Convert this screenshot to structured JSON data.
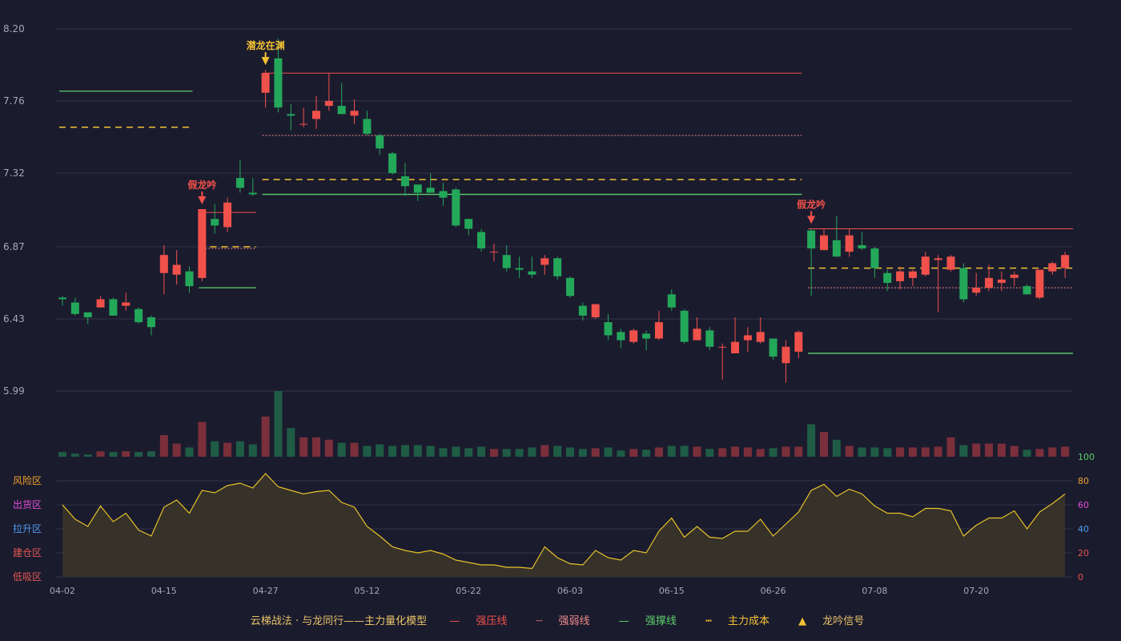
{
  "colors": {
    "background": "#1b1b2e",
    "up": "#f0514a",
    "down": "#23a85a",
    "pressure": "#f0514a",
    "weak": "#ef8a8a",
    "support": "#5bd169",
    "cost": "#f2c234",
    "signal_bear": "#f2c234",
    "signal_false": "#f0514a",
    "indicator": "#e6c229",
    "grid": "#33334a",
    "axis_text": "#a7a7b7"
  },
  "chart_data": {
    "type": "candlestick",
    "price_axis": {
      "ticks": [
        "8.20",
        "7.76",
        "7.32",
        "6.87",
        "6.43",
        "5.99"
      ],
      "ylim": [
        5.99,
        8.2
      ]
    },
    "date_ticks": [
      "04-02",
      "04-15",
      "04-27",
      "05-12",
      "05-22",
      "06-03",
      "06-15",
      "06-26",
      "07-08",
      "07-20"
    ],
    "date_tick_index": [
      0,
      8,
      16,
      24,
      32,
      40,
      48,
      56,
      64,
      72
    ],
    "candles": [
      [
        6.56,
        6.55,
        6.57,
        6.51
      ],
      [
        6.53,
        6.46,
        6.56,
        6.45
      ],
      [
        6.47,
        6.44,
        6.47,
        6.4
      ],
      [
        6.5,
        6.55,
        6.57,
        6.5
      ],
      [
        6.55,
        6.45,
        6.56,
        6.45
      ],
      [
        6.51,
        6.53,
        6.59,
        6.48
      ],
      [
        6.49,
        6.41,
        6.5,
        6.4
      ],
      [
        6.44,
        6.38,
        6.45,
        6.33
      ],
      [
        6.71,
        6.82,
        6.88,
        6.58
      ],
      [
        6.7,
        6.76,
        6.85,
        6.64
      ],
      [
        6.72,
        6.63,
        6.75,
        6.59
      ],
      [
        6.68,
        7.1,
        7.1,
        6.66
      ],
      [
        7.04,
        7.0,
        7.13,
        6.95
      ],
      [
        6.99,
        7.14,
        7.17,
        6.96
      ],
      [
        7.29,
        7.23,
        7.4,
        7.2
      ],
      [
        7.2,
        7.19,
        7.29,
        7.18
      ],
      [
        7.81,
        7.93,
        7.95,
        7.72
      ],
      [
        8.02,
        7.72,
        8.14,
        7.69
      ],
      [
        7.68,
        7.67,
        7.74,
        7.58
      ],
      [
        7.62,
        7.62,
        7.72,
        7.6
      ],
      [
        7.65,
        7.7,
        7.79,
        7.59
      ],
      [
        7.73,
        7.76,
        7.93,
        7.7
      ],
      [
        7.73,
        7.68,
        7.87,
        7.68
      ],
      [
        7.67,
        7.7,
        7.77,
        7.62
      ],
      [
        7.65,
        7.56,
        7.7,
        7.55
      ],
      [
        7.55,
        7.47,
        7.56,
        7.43
      ],
      [
        7.44,
        7.32,
        7.45,
        7.31
      ],
      [
        7.3,
        7.24,
        7.38,
        7.18
      ],
      [
        7.25,
        7.2,
        7.25,
        7.15
      ],
      [
        7.23,
        7.2,
        7.32,
        7.2
      ],
      [
        7.21,
        7.17,
        7.26,
        7.12
      ],
      [
        7.22,
        7.0,
        7.23,
        6.99
      ],
      [
        7.04,
        6.98,
        7.04,
        6.94
      ],
      [
        6.96,
        6.86,
        6.98,
        6.84
      ],
      [
        6.84,
        6.84,
        6.89,
        6.78
      ],
      [
        6.82,
        6.74,
        6.88,
        6.72
      ],
      [
        6.74,
        6.73,
        6.81,
        6.68
      ],
      [
        6.72,
        6.7,
        6.81,
        6.68
      ],
      [
        6.76,
        6.8,
        6.82,
        6.7
      ],
      [
        6.8,
        6.69,
        6.81,
        6.67
      ],
      [
        6.68,
        6.57,
        6.69,
        6.56
      ],
      [
        6.51,
        6.45,
        6.53,
        6.42
      ],
      [
        6.44,
        6.52,
        6.52,
        6.43
      ],
      [
        6.41,
        6.33,
        6.46,
        6.3
      ],
      [
        6.35,
        6.3,
        6.37,
        6.25
      ],
      [
        6.29,
        6.36,
        6.37,
        6.28
      ],
      [
        6.34,
        6.31,
        6.36,
        6.24
      ],
      [
        6.31,
        6.41,
        6.48,
        6.3
      ],
      [
        6.58,
        6.5,
        6.61,
        6.48
      ],
      [
        6.48,
        6.29,
        6.49,
        6.28
      ],
      [
        6.3,
        6.37,
        6.44,
        6.31
      ],
      [
        6.36,
        6.26,
        6.38,
        6.24
      ],
      [
        6.26,
        6.26,
        6.28,
        6.06
      ],
      [
        6.22,
        6.29,
        6.44,
        6.22
      ],
      [
        6.3,
        6.33,
        6.38,
        6.23
      ],
      [
        6.29,
        6.35,
        6.44,
        6.28
      ],
      [
        6.31,
        6.2,
        6.31,
        6.18
      ],
      [
        6.16,
        6.26,
        6.3,
        6.04
      ],
      [
        6.23,
        6.35,
        6.36,
        6.19
      ],
      [
        6.97,
        6.86,
        6.98,
        6.57
      ],
      [
        6.85,
        6.94,
        6.98,
        6.85
      ],
      [
        6.91,
        6.81,
        7.06,
        6.81
      ],
      [
        6.84,
        6.94,
        6.98,
        6.81
      ],
      [
        6.88,
        6.86,
        6.96,
        6.85
      ],
      [
        6.86,
        6.74,
        6.87,
        6.68
      ],
      [
        6.71,
        6.65,
        6.73,
        6.6
      ],
      [
        6.66,
        6.72,
        6.75,
        6.61
      ],
      [
        6.68,
        6.72,
        6.73,
        6.63
      ],
      [
        6.7,
        6.81,
        6.84,
        6.69
      ],
      [
        6.79,
        6.8,
        6.82,
        6.47
      ],
      [
        6.73,
        6.81,
        6.82,
        6.72
      ],
      [
        6.74,
        6.55,
        6.77,
        6.53
      ],
      [
        6.59,
        6.62,
        6.71,
        6.57
      ],
      [
        6.62,
        6.68,
        6.76,
        6.6
      ],
      [
        6.65,
        6.67,
        6.72,
        6.6
      ],
      [
        6.68,
        6.7,
        6.72,
        6.63
      ],
      [
        6.63,
        6.58,
        6.64,
        6.58
      ],
      [
        6.56,
        6.73,
        6.73,
        6.55
      ],
      [
        6.72,
        6.77,
        6.78,
        6.7
      ],
      [
        6.74,
        6.82,
        6.84,
        6.68
      ]
    ],
    "volume": [
      6,
      4,
      3,
      7,
      6,
      7,
      6,
      7,
      28,
      17,
      12,
      45,
      20,
      18,
      20,
      16,
      52,
      85,
      37,
      25,
      25,
      22,
      18,
      18,
      14,
      16,
      14,
      15,
      15,
      14,
      11,
      13,
      11,
      13,
      10,
      10,
      10,
      12,
      15,
      14,
      12,
      10,
      11,
      12,
      8,
      10,
      9,
      12,
      14,
      14,
      13,
      10,
      11,
      13,
      12,
      10,
      11,
      13,
      13,
      42,
      32,
      22,
      14,
      12,
      12,
      11,
      12,
      12,
      12,
      13,
      25,
      15,
      17,
      17,
      17,
      14,
      9,
      10,
      12,
      13
    ],
    "volume_max": 85,
    "indicator": [
      60,
      48,
      42,
      59,
      46,
      53,
      39,
      34,
      58,
      64,
      53,
      72,
      70,
      76,
      78,
      74,
      86,
      75,
      72,
      69,
      71,
      72,
      62,
      58,
      42,
      34,
      25,
      22,
      20,
      22,
      19,
      14,
      12,
      10,
      10,
      8,
      8,
      7,
      25,
      16,
      11,
      10,
      22,
      16,
      14,
      22,
      20,
      38,
      49,
      33,
      42,
      33,
      32,
      38,
      38,
      48,
      34,
      44,
      54,
      72,
      77,
      67,
      73,
      69,
      59,
      53,
      53,
      50,
      57,
      57,
      55,
      34,
      43,
      49,
      49,
      55,
      40,
      54,
      61,
      69
    ],
    "indicator_ticks": [
      "100",
      "80",
      "60",
      "40",
      "20",
      "0"
    ],
    "indicator_tick_colors": [
      "#5bd169",
      "#f2a22c",
      "#e04ed8",
      "#4f9df0",
      "#e4584f",
      "#f0514a"
    ],
    "zones": [
      {
        "label": "风险区",
        "value": 80,
        "color": "#f2a22c"
      },
      {
        "label": "出货区",
        "value": 60,
        "color": "#e04ed8"
      },
      {
        "label": "拉升区",
        "value": 40,
        "color": "#4f9df0"
      },
      {
        "label": "建仓区",
        "value": 20,
        "color": "#e4584f"
      },
      {
        "label": "低吸区",
        "value": 0,
        "color": "#e4584f"
      }
    ],
    "levels": [
      {
        "kind": "support",
        "value": 7.82,
        "from": 0,
        "to": 10
      },
      {
        "kind": "cost",
        "value": 7.6,
        "from": 0,
        "to": 10
      },
      {
        "kind": "pressure",
        "value": 7.08,
        "from": 11,
        "to": 15
      },
      {
        "kind": "cost",
        "value": 6.87,
        "from": 11,
        "to": 15
      },
      {
        "kind": "weak",
        "value": 6.86,
        "from": 11,
        "to": 15
      },
      {
        "kind": "support",
        "value": 6.62,
        "from": 11,
        "to": 15
      },
      {
        "kind": "pressure",
        "value": 7.93,
        "from": 16,
        "to": 58
      },
      {
        "kind": "weak",
        "value": 7.55,
        "from": 16,
        "to": 58
      },
      {
        "kind": "cost",
        "value": 7.28,
        "from": 16,
        "to": 58
      },
      {
        "kind": "support",
        "value": 7.19,
        "from": 16,
        "to": 58
      },
      {
        "kind": "pressure",
        "value": 6.98,
        "from": 59,
        "to": 79
      },
      {
        "kind": "cost",
        "value": 6.74,
        "from": 59,
        "to": 79
      },
      {
        "kind": "weak",
        "value": 6.62,
        "from": 59,
        "to": 79
      },
      {
        "kind": "support",
        "value": 6.22,
        "from": 59,
        "to": 79
      }
    ],
    "signals": [
      {
        "label": "潜龙在渊",
        "index": 16,
        "kind": "bear"
      },
      {
        "label": "假龙吟",
        "index": 11,
        "kind": "false"
      },
      {
        "label": "假龙吟",
        "index": 59,
        "kind": "false"
      }
    ]
  },
  "legend": {
    "title": "云梯战法 · 与龙同行——主力量化模型",
    "pressure": "强压线",
    "weak": "强弱线",
    "support": "强撑线",
    "cost": "主力成本",
    "signal_mark": "▲",
    "signal": "龙吟信号"
  }
}
